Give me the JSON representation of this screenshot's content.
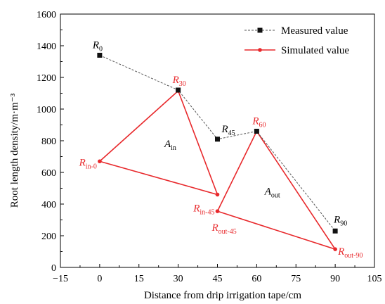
{
  "chart_data": {
    "type": "line",
    "xlabel": "Distance from drip irrigation tape/cm",
    "ylabel": "Root length density/m·m⁻³",
    "xlim": [
      -15,
      105
    ],
    "ylim": [
      0,
      1600
    ],
    "xticks": [
      "−15",
      "0",
      "15",
      "30",
      "45",
      "60",
      "75",
      "90",
      "105"
    ],
    "xtick_values": [
      -15,
      0,
      15,
      30,
      45,
      60,
      75,
      90,
      105
    ],
    "yticks": [
      "0",
      "200",
      "400",
      "600",
      "800",
      "1000",
      "1200",
      "1400",
      "1600"
    ],
    "ytick_values": [
      0,
      200,
      400,
      600,
      800,
      1000,
      1200,
      1400,
      1600
    ],
    "legend_position": "top-right",
    "series": [
      {
        "name": "Measured value",
        "color": "#555555",
        "marker": "square",
        "line": "dashed",
        "x": [
          0,
          30,
          45,
          60,
          90
        ],
        "y": [
          1340,
          1120,
          810,
          860,
          230
        ]
      },
      {
        "name": "Simulated value",
        "color": "#e8292c",
        "marker": "circle",
        "line": "solid",
        "segments": [
          {
            "x": [
              0,
              30,
              45,
              0
            ],
            "y": [
              670,
              1115,
              460,
              670
            ]
          },
          {
            "x": [
              45,
              60,
              90,
              45
            ],
            "y": [
              355,
              860,
              115,
              355
            ]
          }
        ]
      }
    ],
    "annotations": [
      {
        "base": "R",
        "sub": "0",
        "x": 0,
        "y": 1340,
        "color": "#000000"
      },
      {
        "base": "R",
        "sub": "30",
        "x": 30,
        "y": 1120,
        "color": "#e8292c"
      },
      {
        "base": "R",
        "sub": "45",
        "x": 45,
        "y": 810,
        "color": "#000000"
      },
      {
        "base": "R",
        "sub": "60",
        "x": 60,
        "y": 860,
        "color": "#e8292c"
      },
      {
        "base": "R",
        "sub": "90",
        "x": 90,
        "y": 230,
        "color": "#000000"
      },
      {
        "base": "R",
        "sub": "in-0",
        "x": 0,
        "y": 670,
        "color": "#e8292c"
      },
      {
        "base": "R",
        "sub": "in-45",
        "x": 45,
        "y": 460,
        "color": "#e8292c"
      },
      {
        "base": "R",
        "sub": "out-45",
        "x": 45,
        "y": 355,
        "color": "#e8292c"
      },
      {
        "base": "R",
        "sub": "out-90",
        "x": 90,
        "y": 115,
        "color": "#e8292c"
      },
      {
        "base": "A",
        "sub": "in",
        "x": 27,
        "y": 760,
        "color": "#000000"
      },
      {
        "base": "A",
        "sub": "out",
        "x": 66,
        "y": 460,
        "color": "#000000"
      }
    ]
  }
}
